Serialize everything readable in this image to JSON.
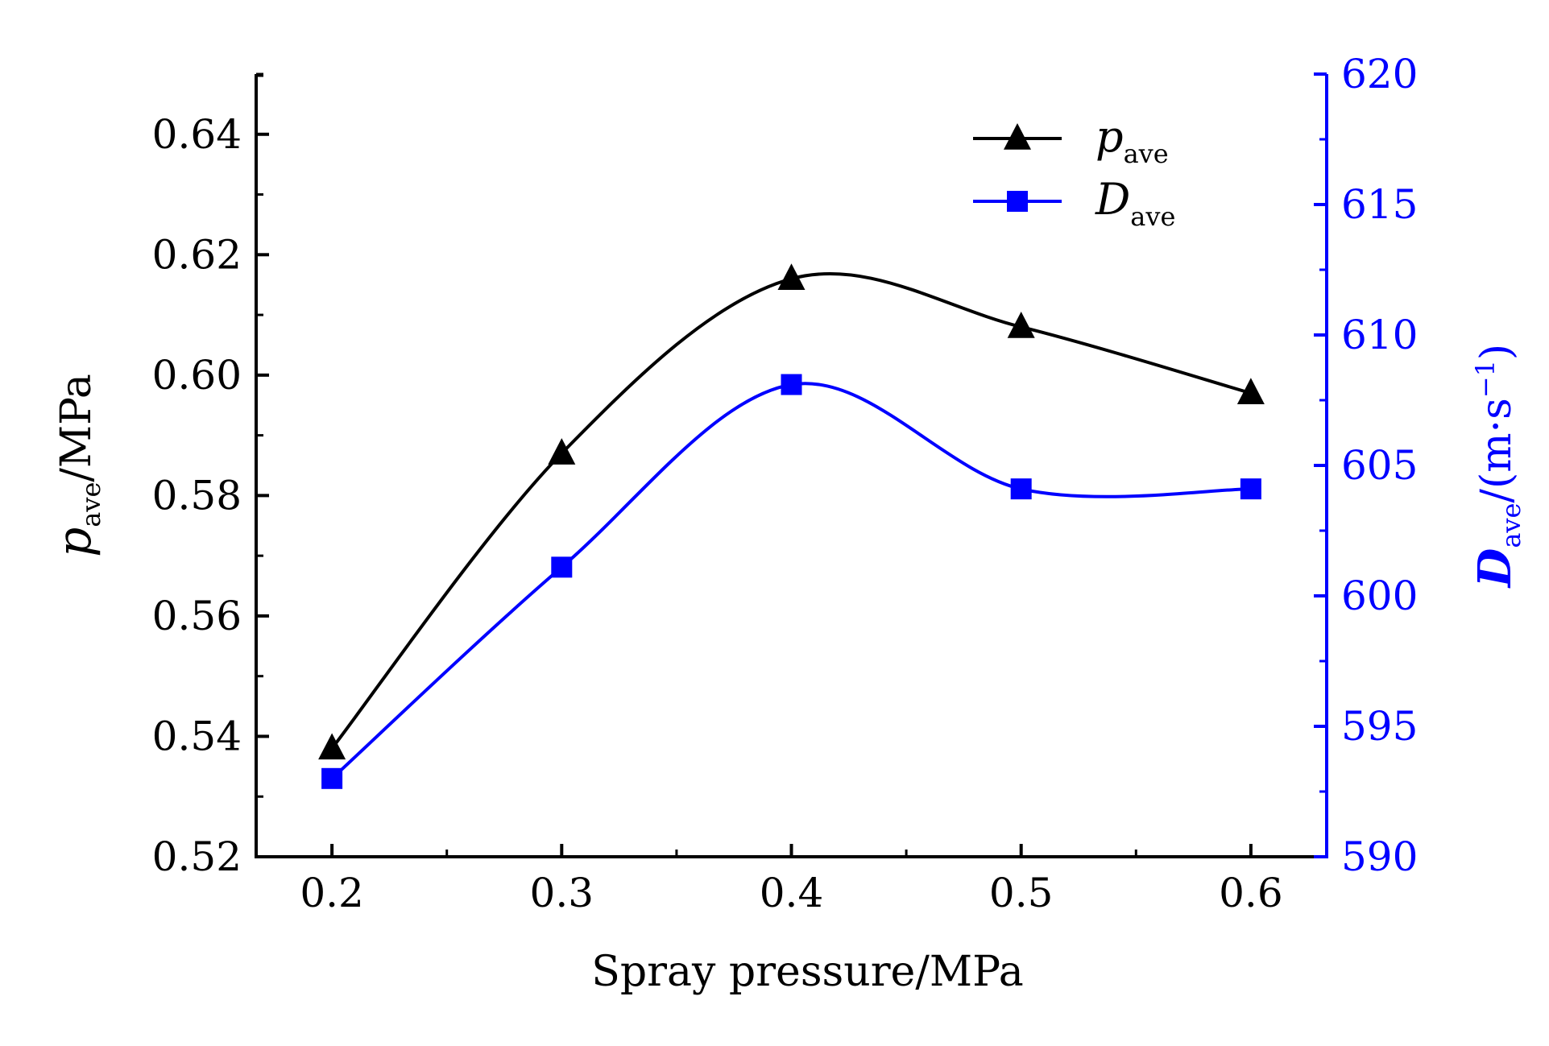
{
  "chart_data": {
    "type": "line",
    "x": [
      0.2,
      0.3,
      0.4,
      0.5,
      0.6
    ],
    "xlim": [
      0.167,
      0.633
    ],
    "x_ticks": [
      "0.2",
      "0.3",
      "0.4",
      "0.5",
      "0.6"
    ],
    "xlabel": "Spray pressure/MPa",
    "ylabel_left": {
      "symbol": "p",
      "sub": "ave",
      "unit": "/MPa"
    },
    "ylabel_right": {
      "symbol": "D",
      "sub": "ave",
      "unit": "/(m·s",
      "sup": "−1",
      "close": ")"
    },
    "ylim_left": [
      0.52,
      0.65
    ],
    "ylim_right": [
      590,
      620
    ],
    "y_ticks_left": [
      "0.52",
      "0.54",
      "0.56",
      "0.58",
      "0.60",
      "0.62",
      "0.64"
    ],
    "y_ticks_right": [
      "590",
      "595",
      "600",
      "605",
      "610",
      "615",
      "620"
    ],
    "series": [
      {
        "name": "p",
        "sub": "ave",
        "axis": "left",
        "marker": "triangle",
        "color": "#000000",
        "values": [
          0.538,
          0.587,
          0.616,
          0.608,
          0.597
        ]
      },
      {
        "name": "D",
        "sub": "ave",
        "axis": "right",
        "marker": "square",
        "color": "#0000ff",
        "values": [
          593.0,
          601.1,
          608.1,
          604.1,
          604.1
        ]
      }
    ],
    "left_axis_color": "#000000",
    "right_axis_color": "#0000ff",
    "legend_position": "top-right"
  }
}
